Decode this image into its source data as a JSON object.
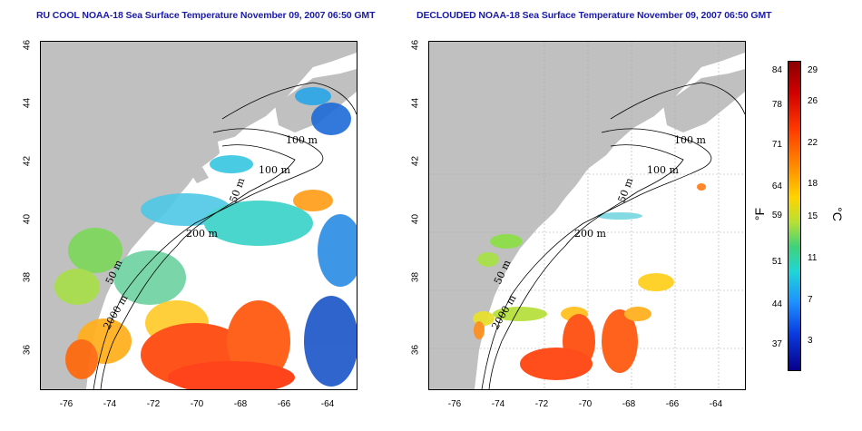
{
  "titles": {
    "left": "RU COOL NOAA-18 Sea Surface Temperature November 09, 2007 06:50 GMT",
    "right": "DECLOUDED NOAA-18 Sea Surface Temperature November 09, 2007 06:50 GMT"
  },
  "axes": {
    "x_ticks": [
      "-76",
      "-74",
      "-72",
      "-70",
      "-68",
      "-66",
      "-64"
    ],
    "y_ticks": [
      "46",
      "44",
      "42",
      "40",
      "38",
      "36"
    ]
  },
  "contour_labels": {
    "left": [
      "100 m",
      "100 m",
      "50 m",
      "200 m",
      "50 m",
      "2000 m"
    ],
    "right": [
      "100 m",
      "100 m",
      "50 m",
      "200 m",
      "50 m",
      "2000 m"
    ]
  },
  "colorbar": {
    "fahrenheit_label": "°F",
    "celsius_label": "°C",
    "fahrenheit_ticks": [
      "84",
      "78",
      "71",
      "64",
      "59",
      "51",
      "44",
      "37"
    ],
    "celsius_ticks": [
      "29",
      "26",
      "22",
      "18",
      "15",
      "11",
      "7",
      "3"
    ]
  },
  "colors": {
    "land": "#c0c0c0",
    "title": "#1a1aa8",
    "warm": "#ff4500",
    "cool": "#1e90ff"
  }
}
